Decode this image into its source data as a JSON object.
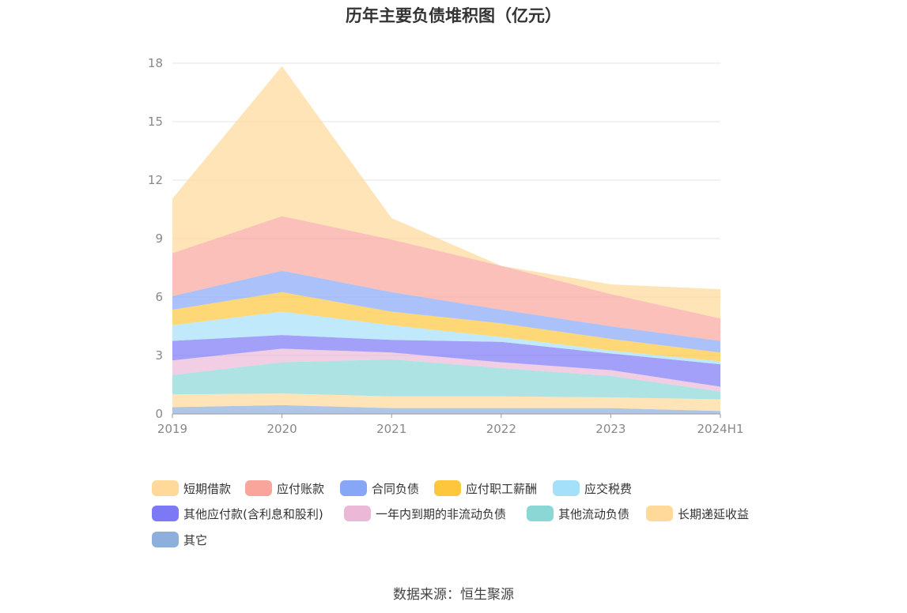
{
  "chart_data": {
    "type": "area",
    "title": "历年主要负债堆积图（亿元）",
    "x": [
      "2019",
      "2020",
      "2021",
      "2022",
      "2023",
      "2024H1"
    ],
    "ylim": [
      0,
      18
    ],
    "yticks": [
      0,
      3,
      6,
      9,
      12,
      15,
      18
    ],
    "grid": true,
    "legend_position": "bottom",
    "stacked": true,
    "series": [
      {
        "name": "其它",
        "color": "#8eaedc",
        "values": [
          0.35,
          0.45,
          0.3,
          0.3,
          0.3,
          0.15
        ]
      },
      {
        "name": "长期递延收益",
        "color": "#ffd99a",
        "values": [
          0.65,
          0.6,
          0.6,
          0.6,
          0.55,
          0.6
        ]
      },
      {
        "name": "其他流动负债",
        "color": "#8ad7d5",
        "values": [
          1.0,
          1.6,
          1.9,
          1.45,
          1.1,
          0.4
        ]
      },
      {
        "name": "一年内到期的非流动负债",
        "color": "#ebb9d7",
        "values": [
          0.75,
          0.7,
          0.35,
          0.3,
          0.3,
          0.25
        ]
      },
      {
        "name": "其他应付款(含利息和股利)",
        "color": "#7c78f6",
        "values": [
          1.0,
          0.7,
          0.65,
          1.05,
          0.85,
          1.15
        ]
      },
      {
        "name": "应交税费",
        "color": "#a5e0fb",
        "values": [
          0.8,
          1.2,
          0.75,
          0.25,
          0.15,
          0.15
        ]
      },
      {
        "name": "应付职工薪酬",
        "color": "#fdc63d",
        "values": [
          0.8,
          1.0,
          0.7,
          0.7,
          0.6,
          0.45
        ]
      },
      {
        "name": "合同负债",
        "color": "#87a6f6",
        "values": [
          0.7,
          1.1,
          1.0,
          0.7,
          0.65,
          0.6
        ]
      },
      {
        "name": "应付账款",
        "color": "#f9a59b",
        "values": [
          2.2,
          2.8,
          2.7,
          2.25,
          1.65,
          1.15
        ]
      },
      {
        "name": "短期借款",
        "color": "#ffd99a",
        "values": [
          2.8,
          7.7,
          1.1,
          0.0,
          0.5,
          1.5
        ]
      }
    ]
  },
  "legend": [
    {
      "label": "短期借款",
      "color": "#ffd99a"
    },
    {
      "label": "应付账款",
      "color": "#f9a59b"
    },
    {
      "label": "合同负债",
      "color": "#87a6f6"
    },
    {
      "label": "应付职工薪酬",
      "color": "#fdc63d"
    },
    {
      "label": "应交税费",
      "color": "#a5e0fb"
    },
    {
      "label": "其他应付款(含利息和股利)",
      "color": "#7c78f6"
    },
    {
      "label": "一年内到期的非流动负债",
      "color": "#ebb9d7"
    },
    {
      "label": "其他流动负债",
      "color": "#8ad7d5"
    },
    {
      "label": "长期递延收益",
      "color": "#ffd99a"
    },
    {
      "label": "其它",
      "color": "#8eaedc"
    }
  ],
  "source": "数据来源：恒生聚源"
}
